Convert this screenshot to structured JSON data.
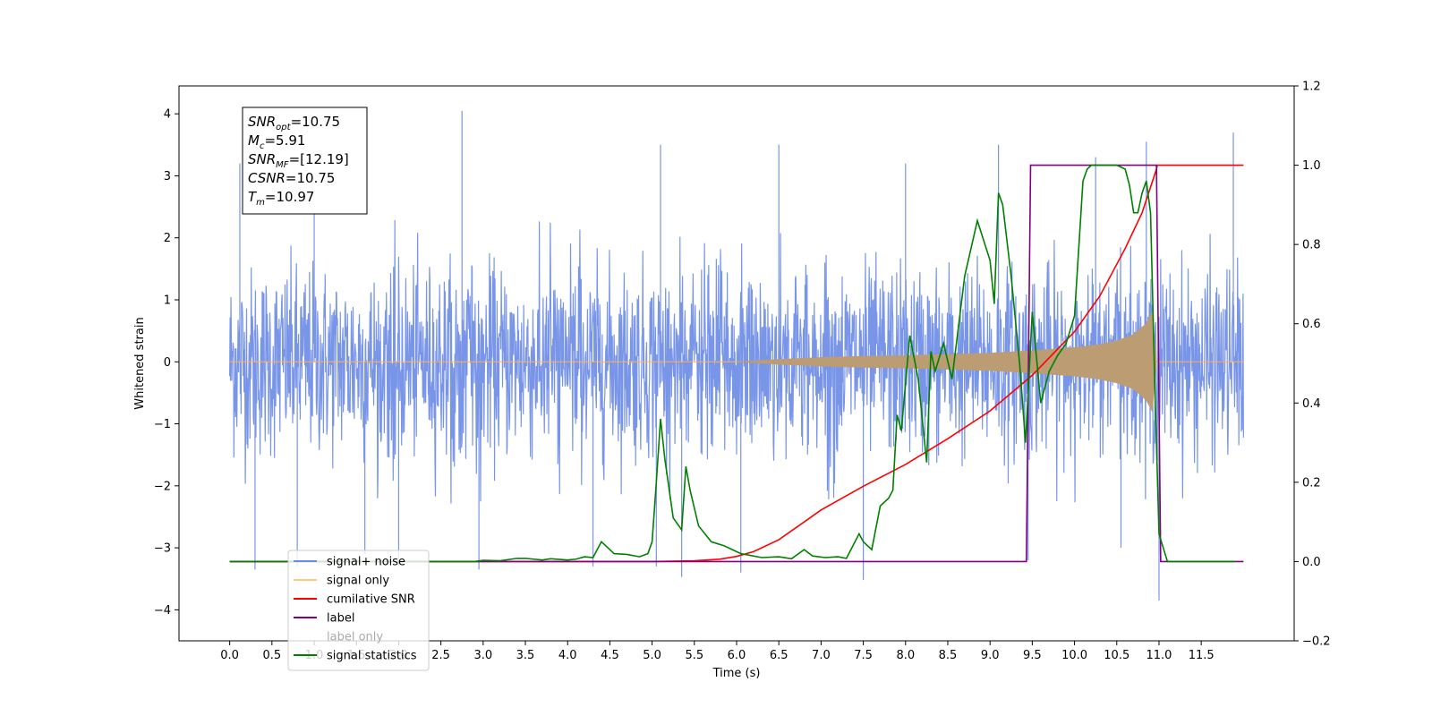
{
  "chart_data": {
    "type": "line",
    "xlabel": "Time (s)",
    "ylabel": "Whitened strain",
    "xlim": [
      -0.6,
      12.6
    ],
    "ylim": [
      -4.5,
      4.45
    ],
    "y2lim": [
      -0.2,
      1.2
    ],
    "x_ticks": [
      0.0,
      0.5,
      1.0,
      1.5,
      2.0,
      2.5,
      3.0,
      3.5,
      4.0,
      4.5,
      5.0,
      5.5,
      6.0,
      6.5,
      7.0,
      7.5,
      8.0,
      8.5,
      9.0,
      9.5,
      10.0,
      10.5,
      11.0,
      11.5
    ],
    "x_tick_labels": [
      "0.0",
      "0.5",
      "1.0",
      "1.5",
      "2.0",
      "2.5",
      "3.0",
      "3.5",
      "4.0",
      "4.5",
      "5.0",
      "5.5",
      "6.0",
      "6.5",
      "7.0",
      "7.5",
      "8.0",
      "8.5",
      "9.0",
      "9.5",
      "10.0",
      "10.5",
      "11.0",
      "11.5"
    ],
    "y_ticks": [
      -4,
      -3,
      -2,
      -1,
      0,
      1,
      2,
      3,
      4
    ],
    "y_tick_labels": [
      "−4",
      "−3",
      "−2",
      "−1",
      "0",
      "1",
      "2",
      "3",
      "4"
    ],
    "y2_ticks": [
      -0.2,
      0.0,
      0.2,
      0.4,
      0.6,
      0.8,
      1.0,
      1.2
    ],
    "y2_tick_labels": [
      "−0.2",
      "0.0",
      "0.2",
      "0.4",
      "0.6",
      "0.8",
      "1.0",
      "1.2"
    ],
    "grid": false,
    "legend_position": "lower-left",
    "annotation": {
      "lines": [
        {
          "sym": "SNR",
          "sub": "opt",
          "rest": "=10.75"
        },
        {
          "sym": "M",
          "sub": "c",
          "rest": "=5.91"
        },
        {
          "sym": "SNR",
          "sub": "MF",
          "rest": "=[12.19]"
        },
        {
          "sym": "CSNR",
          "sub": "",
          "rest": "=10.75"
        },
        {
          "sym": "T",
          "sub": "m",
          "rest": "=10.97"
        }
      ]
    },
    "noise": {
      "x_range": [
        0.0,
        12.0
      ],
      "typical_envelope": 2.3,
      "peaks": [
        {
          "x": 0.12,
          "y": 3.2
        },
        {
          "x": 0.3,
          "y": -3.35
        },
        {
          "x": 0.8,
          "y": -3.3
        },
        {
          "x": 1.0,
          "y": 3.4
        },
        {
          "x": 1.6,
          "y": -3.1
        },
        {
          "x": 2.0,
          "y": -3.3
        },
        {
          "x": 2.75,
          "y": 4.05
        },
        {
          "x": 2.95,
          "y": -3.35
        },
        {
          "x": 4.3,
          "y": -3.3
        },
        {
          "x": 5.05,
          "y": -3.3
        },
        {
          "x": 5.35,
          "y": -3.47
        },
        {
          "x": 5.1,
          "y": 3.5
        },
        {
          "x": 6.05,
          "y": -3.4
        },
        {
          "x": 6.5,
          "y": 3.5
        },
        {
          "x": 7.5,
          "y": -3.52
        },
        {
          "x": 8.0,
          "y": 3.2
        },
        {
          "x": 9.1,
          "y": 3.5
        },
        {
          "x": 9.45,
          "y": -3.2
        },
        {
          "x": 10.25,
          "y": 3.3
        },
        {
          "x": 10.55,
          "y": -3.0
        },
        {
          "x": 10.85,
          "y": 3.55
        },
        {
          "x": 11.0,
          "y": -3.85
        },
        {
          "x": 11.88,
          "y": 3.7
        }
      ]
    },
    "signal_envelope": [
      {
        "x": 6.0,
        "y": 0.0
      },
      {
        "x": 6.5,
        "y": 0.04
      },
      {
        "x": 7.0,
        "y": 0.07
      },
      {
        "x": 7.5,
        "y": 0.09
      },
      {
        "x": 8.0,
        "y": 0.1
      },
      {
        "x": 8.5,
        "y": 0.12
      },
      {
        "x": 9.0,
        "y": 0.14
      },
      {
        "x": 9.5,
        "y": 0.18
      },
      {
        "x": 10.0,
        "y": 0.23
      },
      {
        "x": 10.3,
        "y": 0.28
      },
      {
        "x": 10.5,
        "y": 0.34
      },
      {
        "x": 10.7,
        "y": 0.44
      },
      {
        "x": 10.85,
        "y": 0.62
      },
      {
        "x": 10.92,
        "y": 0.8
      },
      {
        "x": 10.97,
        "y": 0.0
      }
    ],
    "series": [
      {
        "name": "signal+ noise",
        "color": "#6a8ae6",
        "axis": "left",
        "kind": "noise"
      },
      {
        "name": "signal only",
        "color": "#ffb347",
        "axis": "left",
        "kind": "signal"
      },
      {
        "name": "cumilative SNR",
        "color": "#ff0000",
        "axis": "right",
        "x": [
          0.0,
          5.0,
          5.5,
          5.8,
          6.0,
          6.2,
          6.5,
          7.0,
          7.5,
          8.0,
          8.5,
          9.0,
          9.5,
          10.0,
          10.3,
          10.6,
          10.8,
          10.97,
          10.98,
          12.0
        ],
        "y": [
          0.0,
          0.0,
          0.002,
          0.006,
          0.013,
          0.025,
          0.055,
          0.13,
          0.19,
          0.245,
          0.31,
          0.38,
          0.47,
          0.58,
          0.67,
          0.79,
          0.88,
          0.99,
          1.0,
          1.0
        ]
      },
      {
        "name": "label",
        "color": "#800080",
        "axis": "right",
        "x": [
          0.0,
          9.43,
          9.48,
          10.97,
          11.02,
          12.0
        ],
        "y": [
          0.0,
          0.0,
          1.0,
          1.0,
          0.0,
          0.0
        ]
      },
      {
        "name": "label only",
        "color": "#808080",
        "axis": "right",
        "kind": "hidden"
      },
      {
        "name": "signal statistics",
        "color": "#008000",
        "axis": "right",
        "x": [
          0.0,
          2.9,
          3.0,
          3.2,
          3.4,
          3.5,
          3.7,
          3.8,
          4.0,
          4.1,
          4.2,
          4.3,
          4.4,
          4.45,
          4.55,
          4.7,
          4.85,
          4.95,
          5.0,
          5.05,
          5.1,
          5.15,
          5.25,
          5.35,
          5.4,
          5.45,
          5.55,
          5.7,
          5.85,
          5.95,
          6.05,
          6.3,
          6.5,
          6.65,
          6.8,
          6.9,
          7.05,
          7.2,
          7.3,
          7.45,
          7.5,
          7.6,
          7.7,
          7.8,
          7.85,
          7.9,
          7.95,
          8.05,
          8.15,
          8.25,
          8.3,
          8.35,
          8.45,
          8.55,
          8.7,
          8.85,
          9.0,
          9.05,
          9.1,
          9.15,
          9.25,
          9.35,
          9.42,
          9.5,
          9.6,
          9.7,
          9.8,
          9.9,
          10.0,
          10.1,
          10.15,
          10.2,
          10.3,
          10.5,
          10.6,
          10.65,
          10.7,
          10.75,
          10.8,
          10.85,
          10.9,
          10.95,
          11.0,
          11.1,
          11.2,
          11.4,
          11.6,
          11.9
        ],
        "y": [
          0.0,
          0.0,
          0.003,
          0.002,
          0.008,
          0.008,
          0.004,
          0.007,
          0.004,
          0.006,
          0.012,
          0.01,
          0.05,
          0.04,
          0.02,
          0.018,
          0.012,
          0.02,
          0.05,
          0.2,
          0.36,
          0.26,
          0.11,
          0.08,
          0.24,
          0.18,
          0.09,
          0.05,
          0.04,
          0.03,
          0.02,
          0.01,
          0.012,
          0.007,
          0.03,
          0.014,
          0.01,
          0.012,
          0.008,
          0.07,
          0.05,
          0.03,
          0.14,
          0.16,
          0.18,
          0.37,
          0.33,
          0.57,
          0.46,
          0.25,
          0.53,
          0.48,
          0.55,
          0.46,
          0.72,
          0.86,
          0.76,
          0.65,
          0.93,
          0.9,
          0.72,
          0.5,
          0.3,
          0.63,
          0.4,
          0.48,
          0.52,
          0.55,
          0.62,
          0.96,
          0.99,
          1.0,
          1.0,
          1.0,
          0.99,
          0.95,
          0.88,
          0.88,
          0.93,
          0.96,
          0.88,
          0.45,
          0.07,
          0.0,
          0.0,
          0.0,
          0.0,
          0.0
        ]
      }
    ]
  }
}
